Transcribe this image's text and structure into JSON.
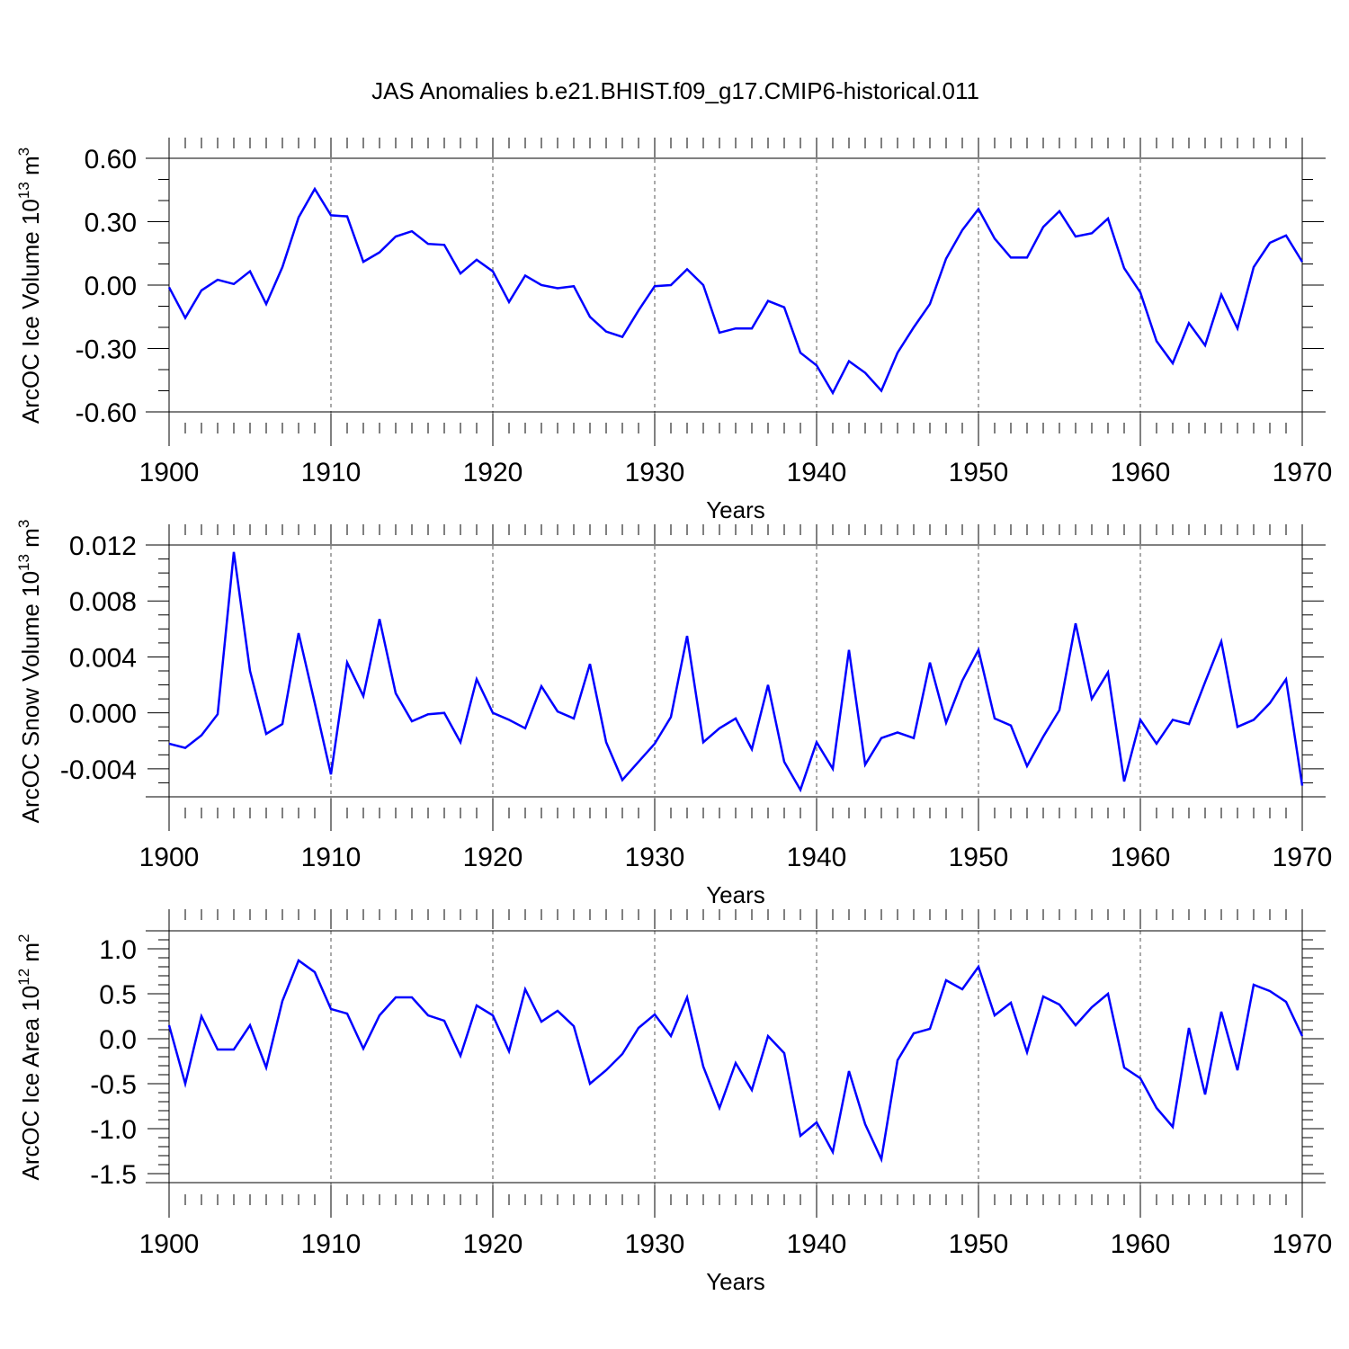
{
  "chart_data": {
    "title": "JAS Anomalies b.e21.BHIST.f09_g17.CMIP6-historical.011",
    "type": "line",
    "line_color": "#0000ff",
    "grid": "vertical dashed at major x ticks",
    "panels": [
      {
        "ylabel": "ArcOC Ice Volume 10",
        "ylabel_sup": "13",
        "ylabel_unit": " m",
        "ylabel_unit_sup": "3",
        "xlabel": "Years",
        "xlim": [
          1900,
          1970
        ],
        "ylim": [
          -0.6,
          0.6
        ],
        "yticks": [
          -0.6,
          -0.3,
          0.0,
          0.3,
          0.6
        ],
        "ytick_labels": [
          "-0.60",
          "-0.30",
          "0.00",
          "0.30",
          "0.60"
        ],
        "ytick_minor_step": 0.1,
        "xticks": [
          1900,
          1910,
          1920,
          1930,
          1940,
          1950,
          1960,
          1970
        ],
        "xtick_labels": [
          "1900",
          "1910",
          "1920",
          "1930",
          "1940",
          "1950",
          "1960",
          "1970"
        ],
        "x_start": 1900,
        "values": [
          -0.01,
          -0.155,
          -0.025,
          0.025,
          0.005,
          0.065,
          -0.09,
          0.085,
          0.32,
          0.455,
          0.33,
          0.325,
          0.11,
          0.155,
          0.23,
          0.255,
          0.195,
          0.19,
          0.055,
          0.12,
          0.065,
          -0.08,
          0.045,
          0.0,
          -0.015,
          -0.005,
          -0.15,
          -0.22,
          -0.245,
          -0.12,
          -0.005,
          0.0,
          0.075,
          0.0,
          -0.225,
          -0.205,
          -0.205,
          -0.075,
          -0.105,
          -0.32,
          -0.38,
          -0.51,
          -0.36,
          -0.415,
          -0.5,
          -0.32,
          -0.2,
          -0.09,
          0.125,
          0.26,
          0.36,
          0.22,
          0.13,
          0.13,
          0.275,
          0.35,
          0.23,
          0.245,
          0.315,
          0.08,
          -0.035,
          -0.265,
          -0.37,
          -0.18,
          -0.285,
          -0.045,
          -0.205,
          0.085,
          0.2,
          0.235,
          0.11
        ]
      },
      {
        "ylabel": "ArcOC Snow Volume 10",
        "ylabel_sup": "13",
        "ylabel_unit": " m",
        "ylabel_unit_sup": "3",
        "xlabel": "Years",
        "xlim": [
          1900,
          1970
        ],
        "ylim": [
          -0.006,
          0.012
        ],
        "yticks": [
          -0.004,
          0.0,
          0.004,
          0.008,
          0.012
        ],
        "ytick_labels": [
          "-0.004",
          "0.000",
          "0.004",
          "0.008",
          "0.012"
        ],
        "ytick_minor_step": 0.001,
        "xticks": [
          1900,
          1910,
          1920,
          1930,
          1940,
          1950,
          1960,
          1970
        ],
        "xtick_labels": [
          "1900",
          "1910",
          "1920",
          "1930",
          "1940",
          "1950",
          "1960",
          "1970"
        ],
        "x_start": 1900,
        "values": [
          -0.0022,
          -0.0025,
          -0.0016,
          -0.0001,
          0.0115,
          0.003,
          -0.0015,
          -0.0008,
          0.0057,
          0.0007,
          -0.0044,
          0.0036,
          0.0012,
          0.0067,
          0.0014,
          -0.0006,
          -0.0001,
          0.0,
          -0.0021,
          0.0024,
          0.0,
          -0.0005,
          -0.0011,
          0.0019,
          0.0001,
          -0.0004,
          0.0035,
          -0.0021,
          -0.0048,
          -0.0035,
          -0.0022,
          -0.0003,
          0.0055,
          -0.0021,
          -0.0011,
          -0.0004,
          -0.0026,
          0.002,
          -0.0035,
          -0.0055,
          -0.0021,
          -0.004,
          0.0045,
          -0.0037,
          -0.0018,
          -0.0014,
          -0.0018,
          0.0036,
          -0.0007,
          0.0023,
          0.0045,
          -0.0004,
          -0.0009,
          -0.0038,
          -0.0017,
          0.0002,
          0.0064,
          0.001,
          0.0029,
          -0.0049,
          -0.0005,
          -0.0022,
          -0.0005,
          -0.0008,
          0.0022,
          0.0051,
          -0.001,
          -0.0005,
          0.0007,
          0.0024,
          -0.0052
        ]
      },
      {
        "ylabel": "ArcOC Ice Area 10",
        "ylabel_sup": "12",
        "ylabel_unit": " m",
        "ylabel_unit_sup": "2",
        "xlabel": "Years",
        "xlim": [
          1900,
          1970
        ],
        "ylim": [
          -1.6,
          1.2
        ],
        "yticks": [
          -1.5,
          -1.0,
          -0.5,
          0.0,
          0.5,
          1.0
        ],
        "ytick_labels": [
          "-1.5",
          "-1.0",
          "-0.5",
          "0.0",
          "0.5",
          "1.0"
        ],
        "ytick_minor_step": 0.1,
        "xticks": [
          1900,
          1910,
          1920,
          1930,
          1940,
          1950,
          1960,
          1970
        ],
        "xtick_labels": [
          "1900",
          "1910",
          "1920",
          "1930",
          "1940",
          "1950",
          "1960",
          "1970"
        ],
        "x_start": 1900,
        "values": [
          0.15,
          -0.5,
          0.25,
          -0.12,
          -0.12,
          0.15,
          -0.32,
          0.42,
          0.87,
          0.74,
          0.33,
          0.28,
          -0.11,
          0.26,
          0.46,
          0.46,
          0.26,
          0.2,
          -0.19,
          0.37,
          0.26,
          -0.14,
          0.55,
          0.19,
          0.31,
          0.14,
          -0.5,
          -0.35,
          -0.17,
          0.12,
          0.27,
          0.03,
          0.46,
          -0.31,
          -0.77,
          -0.27,
          -0.57,
          0.03,
          -0.16,
          -1.08,
          -0.93,
          -1.26,
          -0.36,
          -0.95,
          -1.34,
          -0.24,
          0.06,
          0.11,
          0.65,
          0.55,
          0.8,
          0.26,
          0.4,
          -0.15,
          0.47,
          0.38,
          0.15,
          0.35,
          0.5,
          -0.32,
          -0.44,
          -0.77,
          -0.98,
          0.12,
          -0.62,
          0.3,
          -0.35,
          0.6,
          0.53,
          0.41,
          0.03
        ]
      }
    ]
  }
}
